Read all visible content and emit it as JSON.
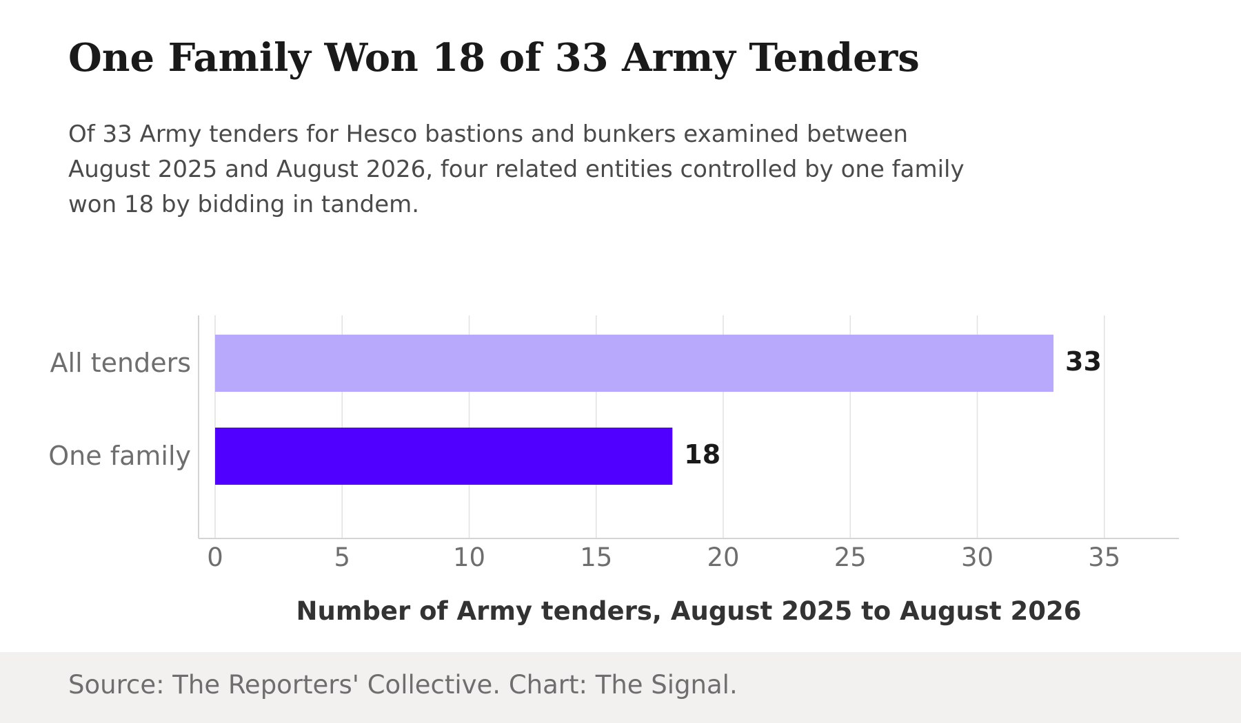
{
  "title": "One Family Won 18 of 33 Army Tenders",
  "subtitle": "Of 33 Army tenders for Hesco bastions and bunkers examined between August 2025 and August 2026, four related entities controlled by one family won 18 by bidding in tandem.",
  "source": "Source: The Reporters' Collective. Chart: The Signal.",
  "chart_data": {
    "type": "bar",
    "orientation": "horizontal",
    "categories": [
      "All tenders",
      "One family"
    ],
    "values": [
      33,
      18
    ],
    "data_labels": [
      "33",
      "18"
    ],
    "colors": [
      "#b8a9fd",
      "#5000ff"
    ],
    "xlabel": "Number of Army tenders, August 2025 to August 2026",
    "ylabel": "",
    "xlim": [
      0,
      38
    ],
    "xticks": [
      0,
      5,
      10,
      15,
      20,
      25,
      30,
      35
    ],
    "grid": "vertical",
    "legend": "none"
  },
  "colors": {
    "grid": "#e1e1e1",
    "axis": "#d4d4d4",
    "tick_text": "#6e6e6e",
    "label_text": "#1a1a1a",
    "xlabel_text": "#333333",
    "footer_bg": "#f2f1f0"
  }
}
